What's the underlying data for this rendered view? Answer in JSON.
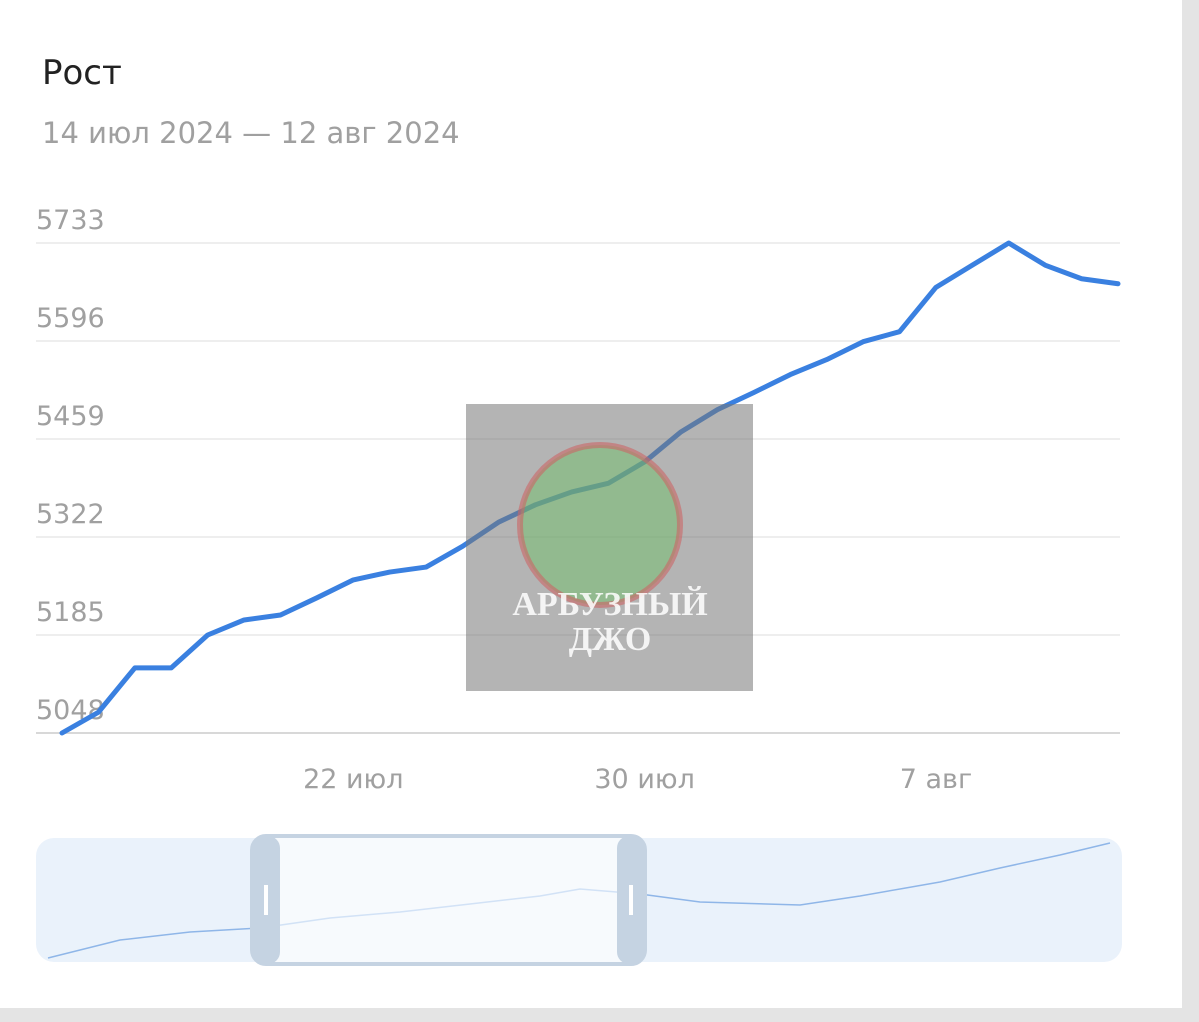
{
  "chart_data": {
    "type": "line",
    "title": "Рост",
    "subtitle": "14 июл 2024 — 12 авг 2024",
    "categories": [
      null,
      null,
      null,
      null,
      null,
      null,
      null,
      null,
      "22 июл",
      null,
      null,
      null,
      null,
      null,
      null,
      null,
      "30 июл",
      null,
      null,
      null,
      null,
      null,
      null,
      null,
      "7 авг",
      null,
      null,
      null,
      null,
      null
    ],
    "series": [
      {
        "name": null,
        "color": "#3a80e0",
        "values": [
          5048,
          5077,
          5139,
          5139,
          5185,
          5206,
          5213,
          5237,
          5262,
          5273,
          5280,
          5309,
          5343,
          5367,
          5385,
          5397,
          5427,
          5469,
          5500,
          5524,
          5549,
          5570,
          5595,
          5609,
          5671,
          5702,
          5733,
          5702,
          5683,
          5676
        ]
      }
    ],
    "ylim": [
      5048,
      5733
    ],
    "yticks": [
      5048,
      5185,
      5322,
      5459,
      5596,
      5733
    ],
    "grid": true,
    "watermark": [
      "АРБУЗНЫЙ",
      "ДЖО"
    ]
  }
}
